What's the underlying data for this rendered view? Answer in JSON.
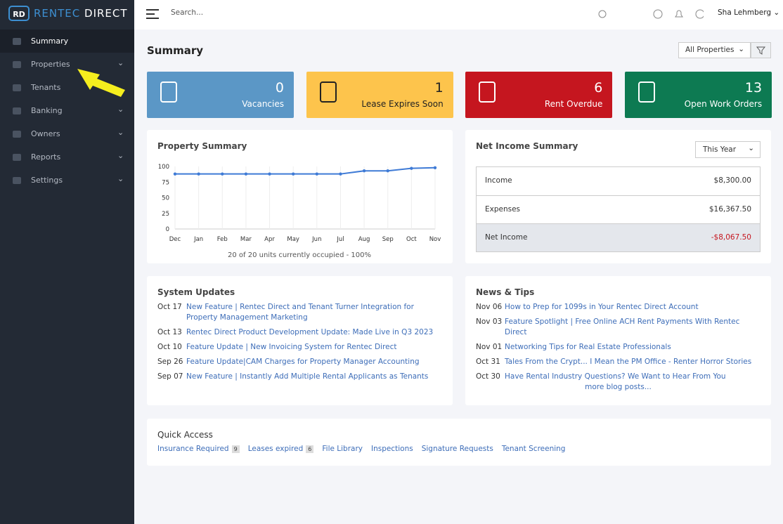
{
  "brand": {
    "name": "RENTEC",
    "suffix": "DIRECT"
  },
  "sidebar": {
    "items": [
      {
        "label": "Summary",
        "expandable": false,
        "active": true
      },
      {
        "label": "Properties",
        "expandable": true,
        "active": false
      },
      {
        "label": "Tenants",
        "expandable": false,
        "active": false
      },
      {
        "label": "Banking",
        "expandable": true,
        "active": false
      },
      {
        "label": "Owners",
        "expandable": true,
        "active": false
      },
      {
        "label": "Reports",
        "expandable": true,
        "active": false
      },
      {
        "label": "Settings",
        "expandable": true,
        "active": false
      }
    ]
  },
  "topbar": {
    "search": "Search...",
    "user": "Sha Lehmberg"
  },
  "page": {
    "title": "Summary",
    "filter": "All Properties"
  },
  "cards": [
    {
      "value": 0,
      "label": "Vacancies",
      "color": "#5b97c6"
    },
    {
      "value": 1,
      "label": "Lease Expires Soon",
      "color": "#fdc44c"
    },
    {
      "value": 6,
      "label": "Rent Overdue",
      "color": "#c5161f"
    },
    {
      "value": 13,
      "label": "Open Work Orders",
      "color": "#0d7a52"
    }
  ],
  "chart_data": {
    "type": "line",
    "title": "Property Summary",
    "categories": [
      "Dec",
      "Jan",
      "Feb",
      "Mar",
      "Apr",
      "May",
      "Jun",
      "Jul",
      "Aug",
      "Sep",
      "Oct",
      "Nov"
    ],
    "values": [
      88,
      88,
      88,
      88,
      88,
      88,
      88,
      88,
      93,
      93,
      97,
      98
    ],
    "color": "#3f7bd6",
    "ylim": [
      0,
      100
    ],
    "yticks": [
      0,
      25,
      50,
      75,
      100
    ],
    "grid": true,
    "note": "20 of 20 units currently occupied - 100%"
  },
  "net_income": {
    "title": "Net Income Summary",
    "period": "This Year",
    "rows": [
      {
        "label": "Income",
        "value": "$8,300.00"
      },
      {
        "label": "Expenses",
        "value": "$16,367.50"
      },
      {
        "label": "Net Income",
        "value": "-$8,067.50"
      }
    ]
  },
  "system_updates": {
    "title": "System Updates",
    "items": [
      {
        "date": "Oct 17",
        "text": "New Feature | Rentec Direct and Tenant Turner Integration for Property Management Marketing"
      },
      {
        "date": "Oct 13",
        "text": "Rentec Direct Product Development Update: Made Live in Q3 2023"
      },
      {
        "date": "Oct 10",
        "text": "Feature Update | New Invoicing System for Rentec Direct"
      },
      {
        "date": "Sep 26",
        "text": "Feature Update|CAM Charges for Property Manager Accounting"
      },
      {
        "date": "Sep 07",
        "text": "New Feature | Instantly Add Multiple Rental Applicants as Tenants"
      }
    ]
  },
  "news": {
    "title": "News & Tips",
    "items": [
      {
        "date": "Nov 06",
        "text": "How to Prep for 1099s in Your Rentec Direct Account"
      },
      {
        "date": "Nov 03",
        "text": "Feature Spotlight | Free Online ACH Rent Payments With Rentec Direct"
      },
      {
        "date": "Nov 01",
        "text": "Networking Tips for Real Estate Professionals"
      },
      {
        "date": "Oct 31",
        "text": "Tales From the Crypt... I Mean the PM Office - Renter Horror Stories"
      },
      {
        "date": "Oct 30",
        "text": "Have Rental Industry Questions? We Want to Hear From You"
      }
    ],
    "more": "more blog posts..."
  },
  "quick_access": {
    "title": "Quick Access",
    "links": [
      {
        "label": "Insurance Required",
        "count": 9
      },
      {
        "label": "Leases expired",
        "count": 6
      },
      {
        "label": "File Library"
      },
      {
        "label": "Inspections"
      },
      {
        "label": "Signature Requests"
      },
      {
        "label": "Tenant Screening"
      }
    ]
  }
}
